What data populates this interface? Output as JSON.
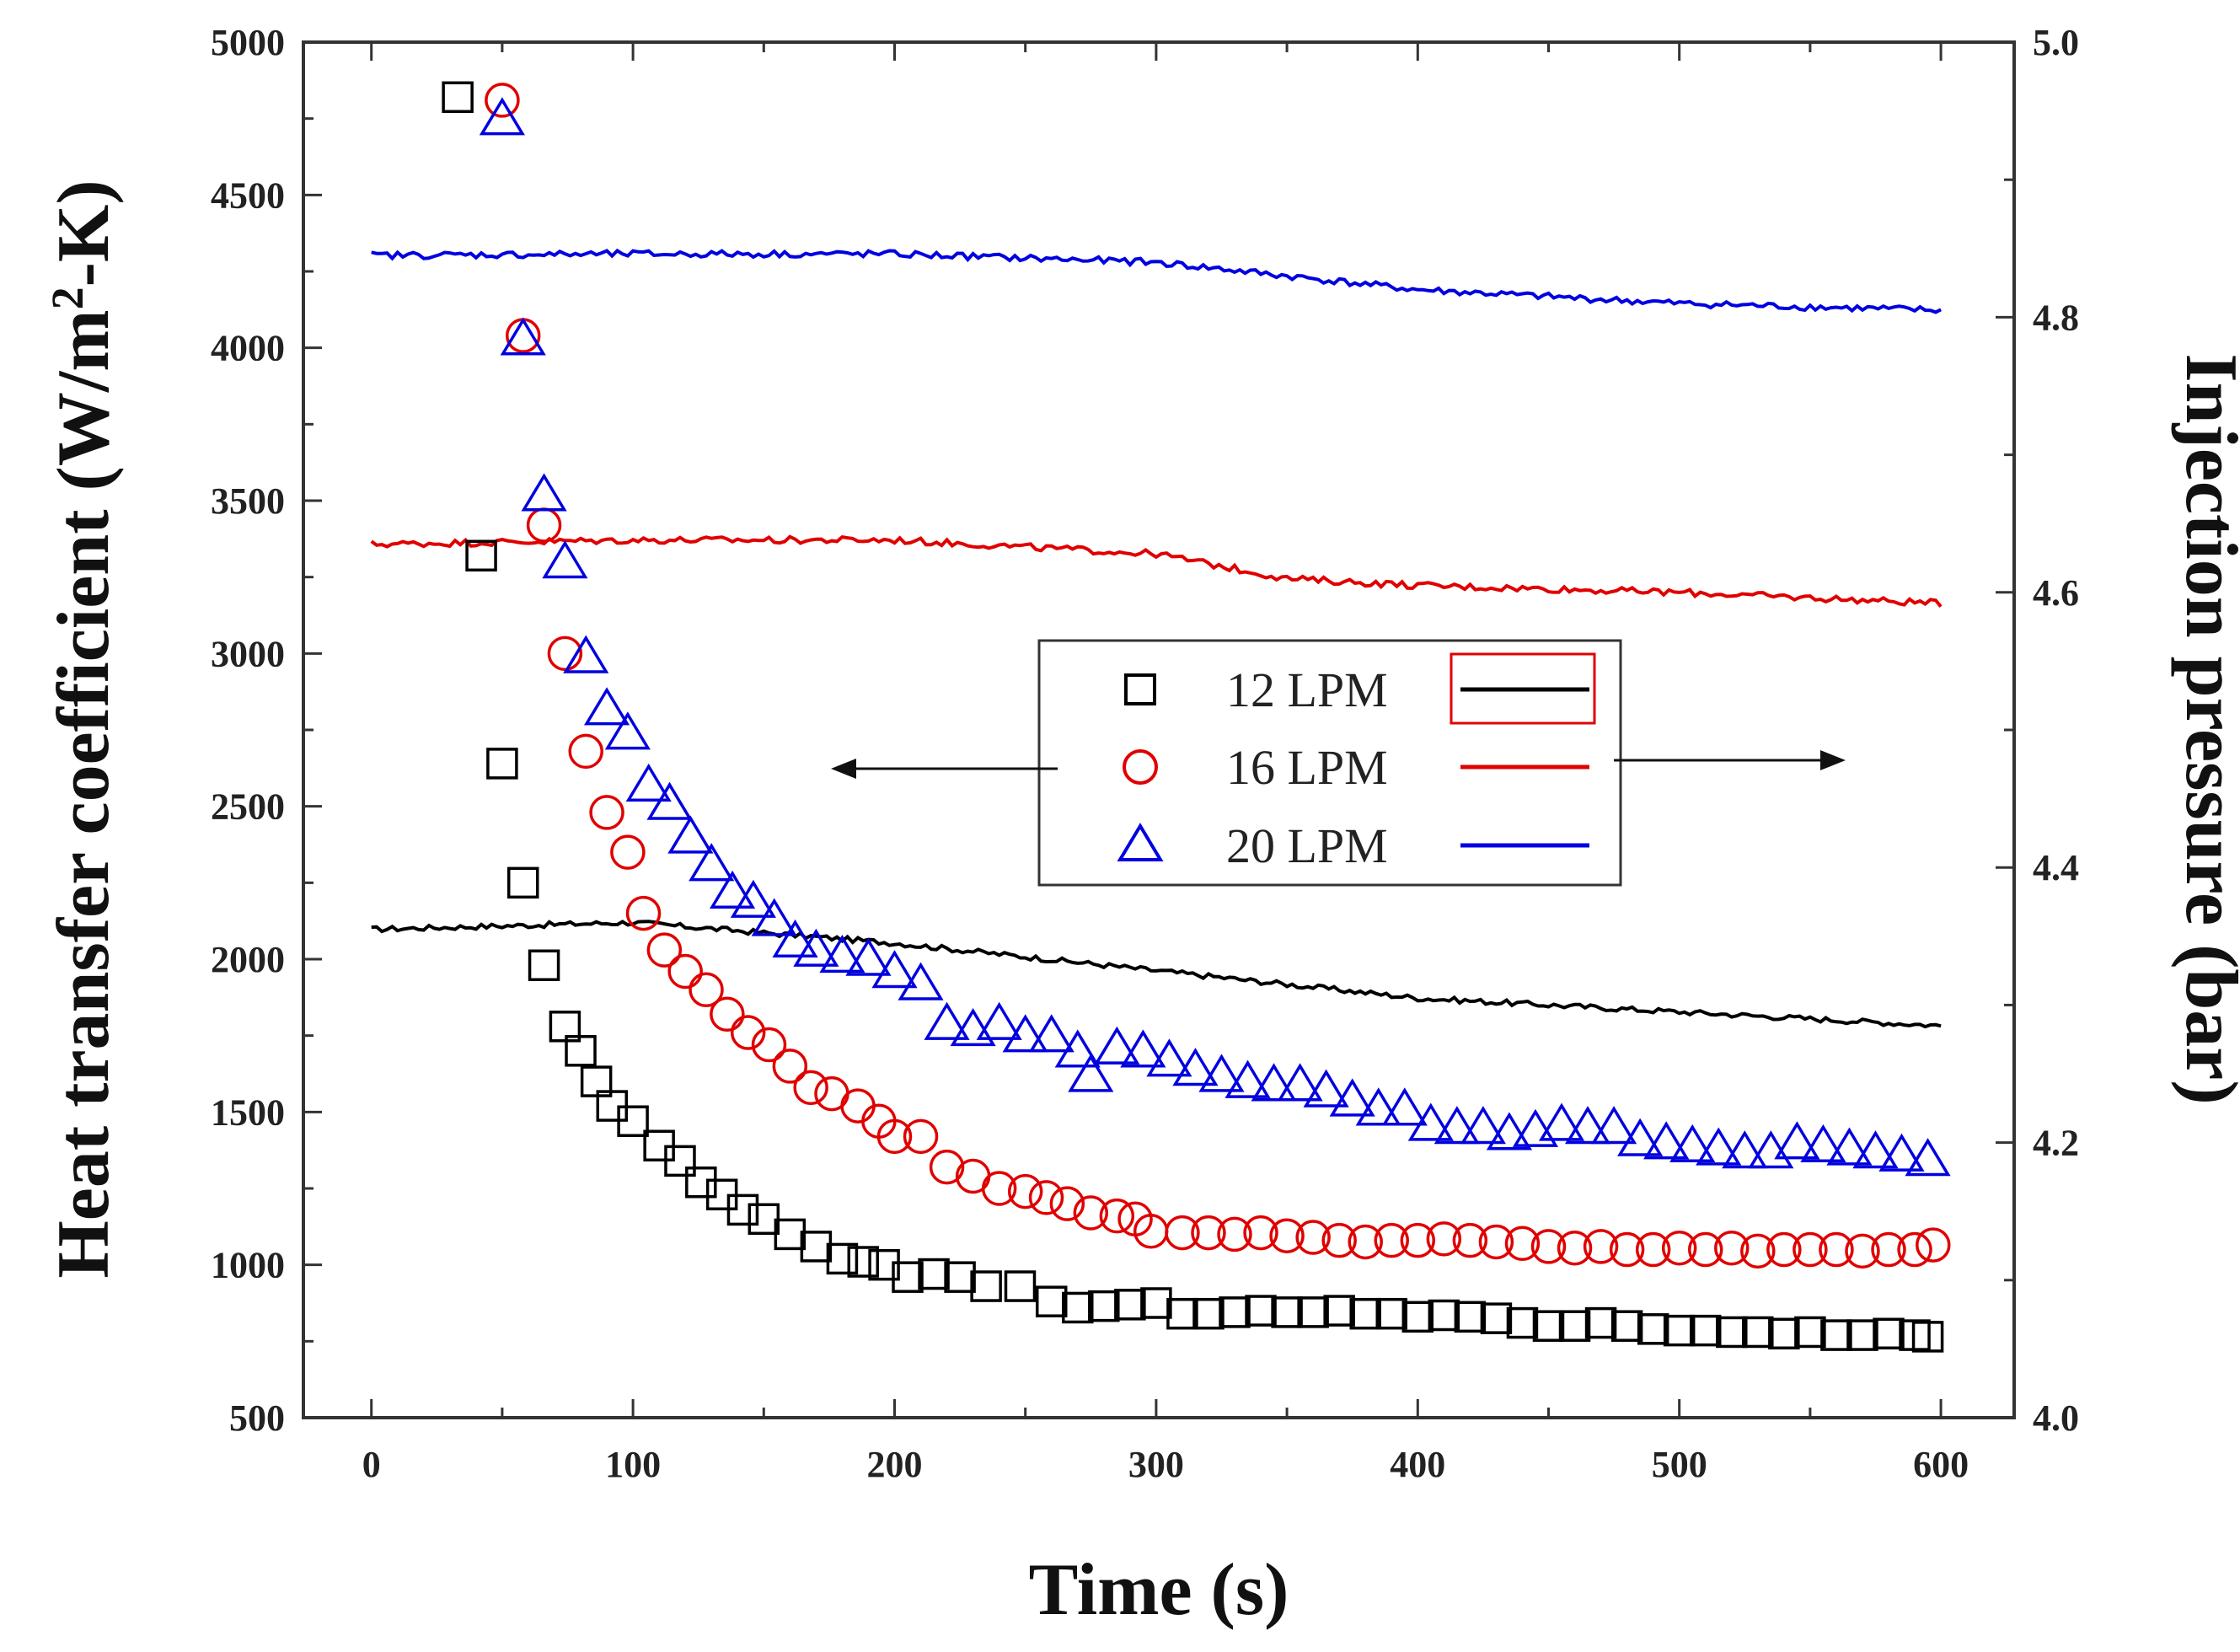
{
  "chart_data": {
    "type": "scatter",
    "xlabel": "Time (s)",
    "ylabel_left_parts": [
      "Heat transfer coefficient (W/m",
      "2",
      "-K)"
    ],
    "ylabel_right": "Injection pressure (bar)",
    "xlim": [
      -26,
      628
    ],
    "ylim_left": [
      500,
      5000
    ],
    "ylim_right": [
      4.0,
      5.0
    ],
    "x_ticks": [
      0,
      100,
      200,
      300,
      400,
      500,
      600
    ],
    "y_left_ticks": [
      500,
      1000,
      1500,
      2000,
      2500,
      3000,
      3500,
      4000,
      4500,
      5000
    ],
    "y_right_ticks": [
      4.0,
      4.2,
      4.4,
      4.6,
      4.8,
      5.0
    ],
    "x_tick_labels": [
      "0",
      "100",
      "200",
      "300",
      "400",
      "500",
      "600"
    ],
    "y_left_tick_labels": [
      "500",
      "1000",
      "1500",
      "2000",
      "2500",
      "3000",
      "3500",
      "4000",
      "4500",
      "5000"
    ],
    "y_right_tick_labels": [
      "4.0",
      "4.2",
      "4.4",
      "4.6",
      "4.8",
      "5.0"
    ],
    "legend": {
      "position": "center-right",
      "entries": [
        {
          "label": "12 LPM",
          "marker": "square",
          "color": "#000000"
        },
        {
          "label": "16 LPM",
          "marker": "circle",
          "color": "#e00000"
        },
        {
          "label": "20 LPM",
          "marker": "triangle",
          "color": "#0000e0"
        }
      ]
    },
    "htc_series": [
      {
        "name": "12 LPM",
        "marker": "square",
        "color": "#000000",
        "axis": "left",
        "points": [
          [
            33,
            4820
          ],
          [
            42,
            3320
          ],
          [
            50,
            2640
          ],
          [
            58,
            2250
          ],
          [
            66,
            1980
          ],
          [
            74,
            1780
          ],
          [
            80,
            1700
          ],
          [
            86,
            1600
          ],
          [
            92,
            1520
          ],
          [
            100,
            1470
          ],
          [
            110,
            1390
          ],
          [
            118,
            1340
          ],
          [
            126,
            1270
          ],
          [
            134,
            1230
          ],
          [
            142,
            1180
          ],
          [
            150,
            1150
          ],
          [
            160,
            1100
          ],
          [
            170,
            1060
          ],
          [
            180,
            1020
          ],
          [
            188,
            1010
          ],
          [
            196,
            1000
          ],
          [
            205,
            960
          ],
          [
            215,
            970
          ],
          [
            225,
            960
          ],
          [
            235,
            930
          ],
          [
            248,
            930
          ],
          [
            260,
            880
          ],
          [
            270,
            860
          ],
          [
            280,
            865
          ],
          [
            290,
            870
          ],
          [
            300,
            875
          ],
          [
            310,
            840
          ],
          [
            320,
            840
          ],
          [
            330,
            845
          ],
          [
            340,
            850
          ],
          [
            350,
            845
          ],
          [
            360,
            845
          ],
          [
            370,
            850
          ],
          [
            380,
            840
          ],
          [
            390,
            840
          ],
          [
            400,
            830
          ],
          [
            410,
            835
          ],
          [
            420,
            830
          ],
          [
            430,
            825
          ],
          [
            440,
            810
          ],
          [
            450,
            800
          ],
          [
            460,
            800
          ],
          [
            470,
            810
          ],
          [
            480,
            800
          ],
          [
            490,
            790
          ],
          [
            500,
            785
          ],
          [
            510,
            785
          ],
          [
            520,
            780
          ],
          [
            530,
            780
          ],
          [
            540,
            775
          ],
          [
            550,
            780
          ],
          [
            560,
            770
          ],
          [
            570,
            770
          ],
          [
            580,
            775
          ],
          [
            590,
            770
          ],
          [
            595,
            765
          ]
        ]
      },
      {
        "name": "16 LPM",
        "marker": "circle",
        "color": "#e00000",
        "axis": "left",
        "points": [
          [
            50,
            4810
          ],
          [
            58,
            4040
          ],
          [
            66,
            3420
          ],
          [
            74,
            3000
          ],
          [
            82,
            2680
          ],
          [
            90,
            2480
          ],
          [
            98,
            2350
          ],
          [
            104,
            2150
          ],
          [
            112,
            2030
          ],
          [
            120,
            1960
          ],
          [
            128,
            1900
          ],
          [
            136,
            1820
          ],
          [
            144,
            1760
          ],
          [
            152,
            1720
          ],
          [
            160,
            1650
          ],
          [
            168,
            1580
          ],
          [
            176,
            1560
          ],
          [
            186,
            1520
          ],
          [
            194,
            1470
          ],
          [
            200,
            1420
          ],
          [
            210,
            1420
          ],
          [
            220,
            1320
          ],
          [
            230,
            1290
          ],
          [
            240,
            1250
          ],
          [
            250,
            1240
          ],
          [
            258,
            1220
          ],
          [
            266,
            1200
          ],
          [
            275,
            1170
          ],
          [
            285,
            1160
          ],
          [
            292,
            1150
          ],
          [
            298,
            1110
          ],
          [
            310,
            1105
          ],
          [
            320,
            1105
          ],
          [
            330,
            1100
          ],
          [
            340,
            1105
          ],
          [
            350,
            1095
          ],
          [
            360,
            1090
          ],
          [
            370,
            1080
          ],
          [
            380,
            1075
          ],
          [
            390,
            1080
          ],
          [
            400,
            1080
          ],
          [
            410,
            1085
          ],
          [
            420,
            1080
          ],
          [
            430,
            1075
          ],
          [
            440,
            1070
          ],
          [
            450,
            1060
          ],
          [
            460,
            1055
          ],
          [
            470,
            1060
          ],
          [
            480,
            1050
          ],
          [
            490,
            1050
          ],
          [
            500,
            1055
          ],
          [
            510,
            1050
          ],
          [
            520,
            1055
          ],
          [
            530,
            1045
          ],
          [
            540,
            1050
          ],
          [
            550,
            1050
          ],
          [
            560,
            1050
          ],
          [
            570,
            1045
          ],
          [
            580,
            1050
          ],
          [
            590,
            1050
          ],
          [
            597,
            1065
          ]
        ]
      },
      {
        "name": "20 LPM",
        "marker": "triangle",
        "color": "#0000e0",
        "axis": "left",
        "points": [
          [
            50,
            4750
          ],
          [
            58,
            4030
          ],
          [
            66,
            3520
          ],
          [
            74,
            3300
          ],
          [
            82,
            2990
          ],
          [
            90,
            2820
          ],
          [
            98,
            2740
          ],
          [
            106,
            2570
          ],
          [
            114,
            2510
          ],
          [
            122,
            2400
          ],
          [
            130,
            2310
          ],
          [
            138,
            2220
          ],
          [
            146,
            2190
          ],
          [
            154,
            2130
          ],
          [
            162,
            2060
          ],
          [
            170,
            2030
          ],
          [
            180,
            2010
          ],
          [
            190,
            2000
          ],
          [
            200,
            1960
          ],
          [
            210,
            1920
          ],
          [
            220,
            1790
          ],
          [
            230,
            1770
          ],
          [
            240,
            1790
          ],
          [
            250,
            1750
          ],
          [
            260,
            1750
          ],
          [
            270,
            1700
          ],
          [
            275,
            1620
          ],
          [
            285,
            1710
          ],
          [
            295,
            1700
          ],
          [
            305,
            1670
          ],
          [
            315,
            1640
          ],
          [
            325,
            1620
          ],
          [
            335,
            1600
          ],
          [
            345,
            1590
          ],
          [
            355,
            1590
          ],
          [
            365,
            1570
          ],
          [
            375,
            1540
          ],
          [
            385,
            1510
          ],
          [
            395,
            1510
          ],
          [
            405,
            1460
          ],
          [
            415,
            1450
          ],
          [
            425,
            1450
          ],
          [
            435,
            1430
          ],
          [
            445,
            1440
          ],
          [
            455,
            1460
          ],
          [
            465,
            1450
          ],
          [
            475,
            1450
          ],
          [
            485,
            1410
          ],
          [
            495,
            1400
          ],
          [
            505,
            1390
          ],
          [
            515,
            1380
          ],
          [
            525,
            1370
          ],
          [
            535,
            1370
          ],
          [
            545,
            1400
          ],
          [
            555,
            1390
          ],
          [
            565,
            1380
          ],
          [
            575,
            1370
          ],
          [
            585,
            1360
          ],
          [
            595,
            1345
          ]
        ]
      }
    ],
    "pressure_series": [
      {
        "name": "12 LPM",
        "color": "#000000",
        "axis": "right",
        "noise": 0.004,
        "x": [
          0,
          100,
          200,
          300,
          400,
          500,
          600
        ],
        "y": [
          4.355,
          4.36,
          4.345,
          4.325,
          4.305,
          4.295,
          4.285
        ]
      },
      {
        "name": "16 LPM",
        "color": "#e00000",
        "axis": "right",
        "noise": 0.005,
        "x": [
          0,
          100,
          200,
          300,
          350,
          400,
          500,
          600
        ],
        "y": [
          4.635,
          4.638,
          4.638,
          4.628,
          4.61,
          4.605,
          4.6,
          4.592
        ]
      },
      {
        "name": "20 LPM",
        "color": "#0000e0",
        "axis": "right",
        "noise": 0.005,
        "x": [
          0,
          100,
          200,
          300,
          350,
          400,
          500,
          600
        ],
        "y": [
          4.845,
          4.846,
          4.846,
          4.84,
          4.83,
          4.82,
          4.81,
          4.805
        ]
      }
    ],
    "annotations": [
      {
        "type": "arrow",
        "direction": "left",
        "meaning": "markers read on left axis"
      },
      {
        "type": "arrow",
        "direction": "right",
        "meaning": "lines read on right axis"
      }
    ]
  }
}
